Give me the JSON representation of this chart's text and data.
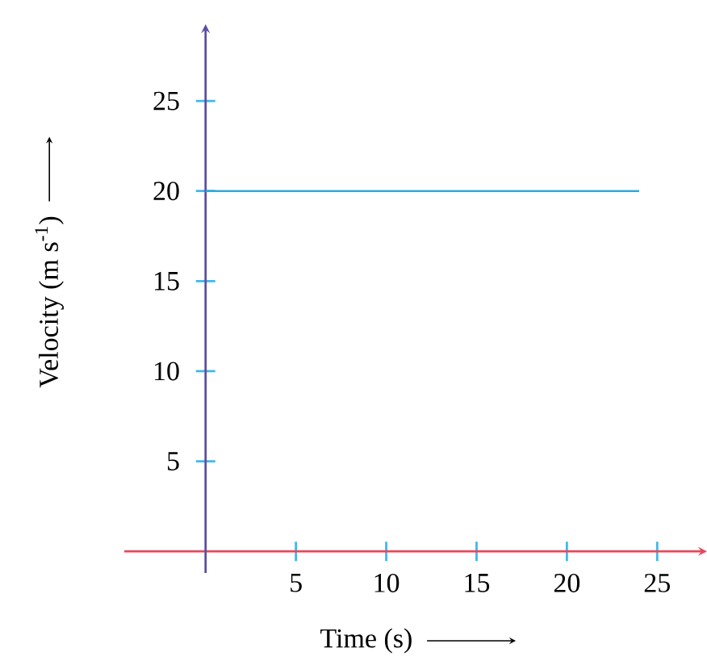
{
  "chart_data": {
    "type": "line",
    "xlabel": "Time (s)",
    "ylabel": "Velocity (m s$^{-1}$)",
    "x": [
      0,
      24
    ],
    "series": [
      {
        "color": "#29abe2",
        "values": [
          20,
          20
        ]
      }
    ],
    "xlim": [
      -4.5,
      27.4
    ],
    "ylim": [
      -1.2,
      28.9
    ],
    "xticks": [
      5,
      10,
      15,
      20,
      25
    ],
    "yticks": [
      5,
      10,
      15,
      20,
      25
    ]
  }
}
